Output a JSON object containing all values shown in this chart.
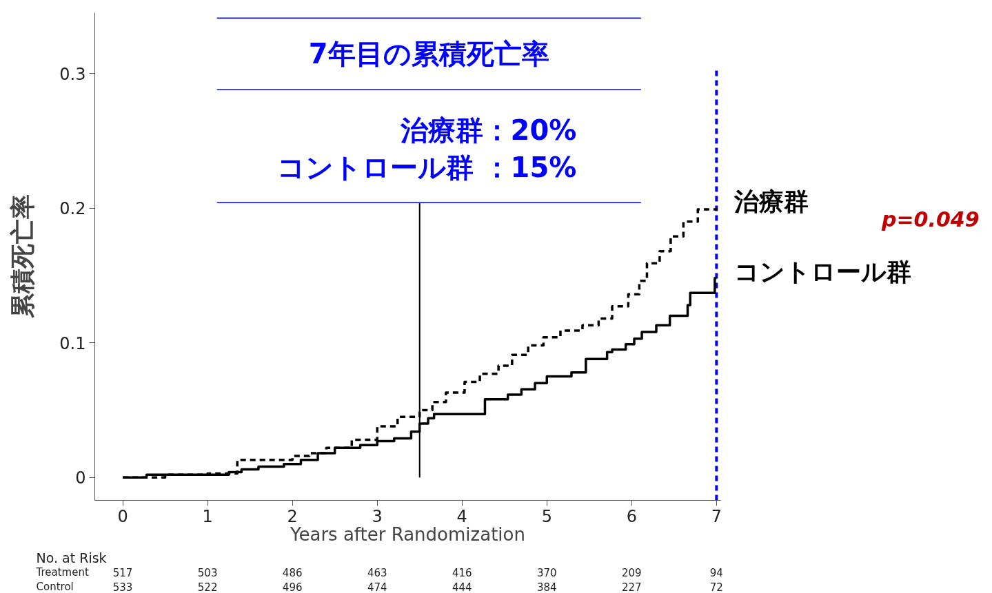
{
  "chart_data": {
    "type": "step",
    "xlabel": "Years after Randomization",
    "ylabel": "累積死亡率",
    "xlim": [
      -0.33,
      7.05
    ],
    "ylim": [
      -0.017,
      0.345
    ],
    "xticks": [
      0,
      1,
      2,
      3,
      4,
      5,
      6,
      7
    ],
    "yticks": [
      0,
      0.1,
      0.2,
      0.3
    ],
    "grid": false,
    "series": [
      {
        "name": "治療群",
        "color": "#000000",
        "line_style": "dashed",
        "x": [
          0,
          0.5,
          1.0,
          1.35,
          2.0,
          2.2,
          2.4,
          2.7,
          3.0,
          3.24,
          3.5,
          3.65,
          3.81,
          4.03,
          4.21,
          4.43,
          4.59,
          4.78,
          4.96,
          5.16,
          5.42,
          5.61,
          5.77,
          5.96,
          6.09,
          6.18,
          6.33,
          6.46,
          6.61,
          6.78,
          7.0
        ],
        "values": [
          0,
          0.002,
          0.003,
          0.013,
          0.016,
          0.018,
          0.022,
          0.028,
          0.038,
          0.045,
          0.05,
          0.056,
          0.063,
          0.071,
          0.077,
          0.083,
          0.091,
          0.098,
          0.104,
          0.109,
          0.113,
          0.118,
          0.127,
          0.136,
          0.146,
          0.159,
          0.168,
          0.179,
          0.19,
          0.199,
          0.2
        ]
      },
      {
        "name": "コントロール群",
        "color": "#000000",
        "line_style": "solid",
        "x": [
          0,
          0.28,
          1.25,
          1.4,
          1.6,
          1.9,
          2.1,
          2.3,
          2.5,
          2.8,
          3.0,
          3.2,
          3.4,
          3.5,
          3.6,
          3.67,
          4.27,
          4.54,
          4.7,
          4.86,
          5.0,
          5.29,
          5.46,
          5.71,
          5.77,
          5.93,
          6.03,
          6.12,
          6.29,
          6.45,
          6.66,
          6.69,
          6.98,
          7.0
        ],
        "values": [
          0,
          0.002,
          0.004,
          0.006,
          0.008,
          0.01,
          0.013,
          0.018,
          0.022,
          0.024,
          0.027,
          0.029,
          0.034,
          0.04,
          0.044,
          0.047,
          0.058,
          0.0615,
          0.0655,
          0.07,
          0.075,
          0.078,
          0.088,
          0.093,
          0.095,
          0.099,
          0.103,
          0.108,
          0.113,
          0.12,
          0.128,
          0.137,
          0.148,
          0.148
        ]
      }
    ],
    "ref_lines": [
      {
        "axis": "x",
        "value": 3.5,
        "color": "#000000",
        "line_style": "solid"
      },
      {
        "axis": "x",
        "value": 7,
        "color": "#0000ff",
        "line_style": "dashed"
      },
      {
        "axis": "y",
        "value": 0.341,
        "color": "#0000ff",
        "line_style": "solid"
      },
      {
        "axis": "y",
        "value": 0.288,
        "color": "#0000ff",
        "line_style": "solid"
      },
      {
        "axis": "y",
        "value": 0.204,
        "color": "#0000ff",
        "line_style": "solid"
      }
    ],
    "annotations": [
      "7年目の累積死亡率",
      "治療群：20%",
      "コントロール群 ：15%",
      "p=0.049",
      "No. at Risk",
      "Treatment",
      "Control",
      "517",
      "503",
      "486",
      "463",
      "416",
      "370",
      "209",
      "94",
      "533",
      "522",
      "496",
      "474",
      "444",
      "384",
      "227",
      "72"
    ]
  }
}
